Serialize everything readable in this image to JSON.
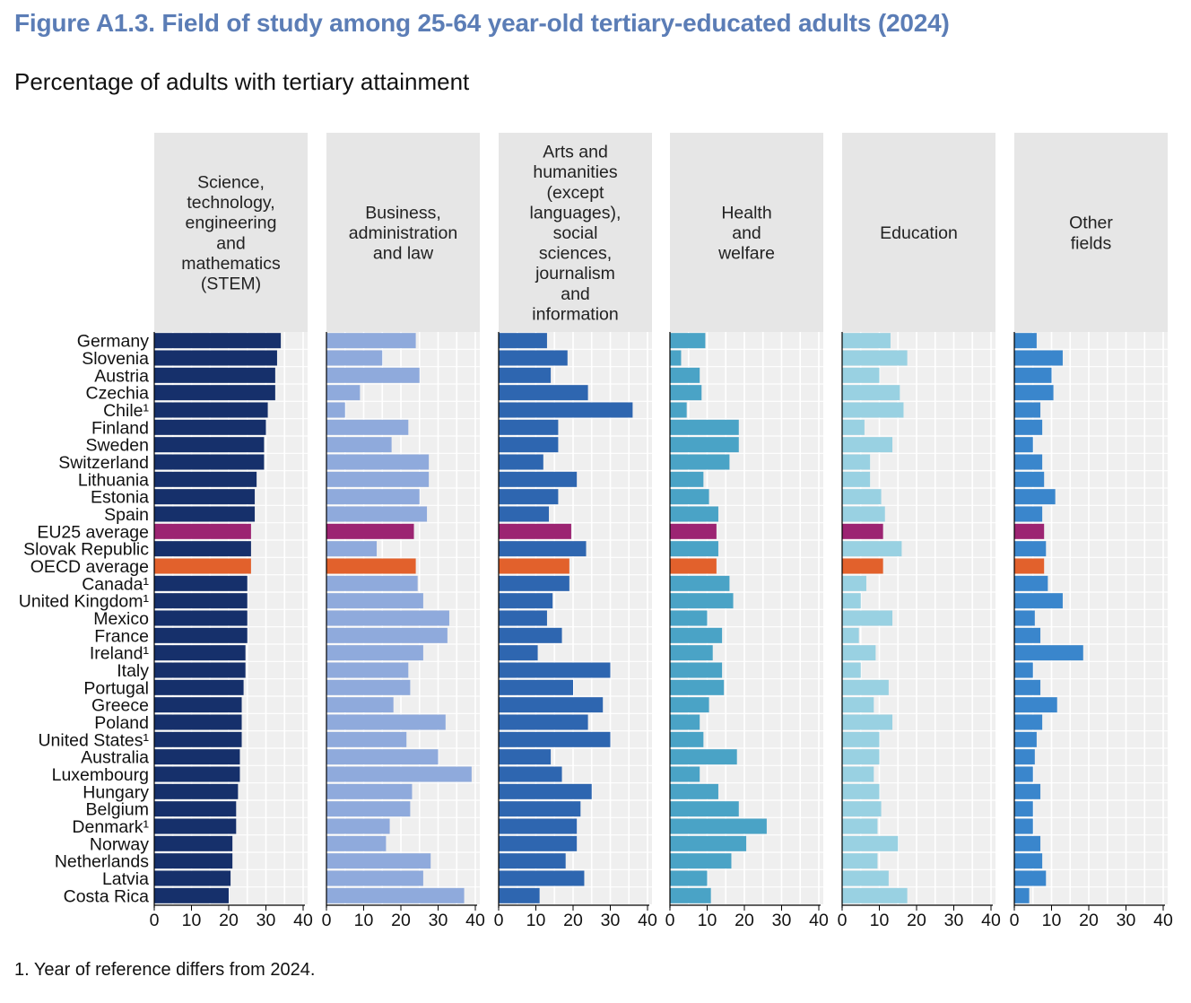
{
  "figure": {
    "title": "Figure A1.3. Field of study among 25-64 year-old tertiary-educated adults (2024)",
    "subtitle": "Percentage of adults with tertiary attainment",
    "note": "1. Year of reference differs from 2024."
  },
  "colors": {
    "panel_header_bg": "#e6e6e6",
    "plot_bg": "#efefef",
    "grid": "#ffffff",
    "eu_highlight": "#9c2472",
    "oecd_highlight": "#e2612c"
  },
  "chart_data": {
    "type": "bar",
    "orientation": "horizontal",
    "categories": [
      "Germany",
      "Slovenia",
      "Austria",
      "Czechia",
      "Chile¹",
      "Finland",
      "Sweden",
      "Switzerland",
      "Lithuania",
      "Estonia",
      "Spain",
      "EU25 average",
      "Slovak Republic",
      "OECD average",
      "Canada¹",
      "United Kingdom¹",
      "Mexico",
      "France",
      "Ireland¹",
      "Italy",
      "Portugal",
      "Greece",
      "Poland",
      "United States¹",
      "Australia",
      "Luxembourg",
      "Hungary",
      "Belgium",
      "Denmark¹",
      "Norway",
      "Netherlands",
      "Latvia",
      "Costa Rica"
    ],
    "highlight": {
      "EU25 average": "#9c2472",
      "OECD average": "#e2612c"
    },
    "xlim": [
      0,
      40
    ],
    "xticks": [
      "0",
      "10",
      "20",
      "30",
      "40"
    ],
    "grid": true,
    "series": [
      {
        "name": "Science, technology, engineering and mathematics (STEM)",
        "color": "#16306b",
        "values": [
          34,
          33,
          32.5,
          32.5,
          30.5,
          30,
          29.5,
          29.5,
          27.5,
          27,
          27,
          26,
          26,
          26,
          25,
          25,
          25,
          25,
          24.5,
          24.5,
          24,
          23.5,
          23.5,
          23.5,
          23,
          23,
          22.5,
          22,
          22,
          21,
          21,
          20.5,
          20
        ]
      },
      {
        "name": "Business, administration and law",
        "color": "#8faadc",
        "values": [
          24,
          15,
          25,
          9,
          5,
          22,
          17.5,
          27.5,
          27.5,
          25,
          27,
          23.5,
          13.5,
          24,
          24.5,
          26,
          33,
          32.5,
          26,
          22,
          22.5,
          18,
          32,
          21.5,
          30,
          39,
          23,
          22.5,
          17,
          16,
          28,
          26,
          37
        ]
      },
      {
        "name": "Arts and humanities (except languages), social sciences, journalism and information",
        "color": "#2e66b0",
        "values": [
          13,
          18.5,
          14,
          24,
          36,
          16,
          16,
          12,
          21,
          16,
          13.5,
          19.5,
          23.5,
          19,
          19,
          14.5,
          13,
          17,
          10.5,
          30,
          20,
          28,
          24,
          30,
          14,
          17,
          25,
          22,
          21,
          21,
          18,
          23,
          11
        ]
      },
      {
        "name": "Health and welfare",
        "color": "#4aa3c6",
        "values": [
          9.5,
          3,
          8,
          8.5,
          4.5,
          18.5,
          18.5,
          16,
          9,
          10.5,
          13,
          12.5,
          13,
          12.5,
          16,
          17,
          10,
          14,
          11.5,
          14,
          14.5,
          10.5,
          8,
          9,
          18,
          8,
          13,
          18.5,
          26,
          20.5,
          16.5,
          10,
          11
        ]
      },
      {
        "name": "Education",
        "color": "#99d1e2",
        "values": [
          13,
          17.5,
          10,
          15.5,
          16.5,
          6,
          13.5,
          7.5,
          7.5,
          10.5,
          11.5,
          11,
          16,
          11,
          6.5,
          5,
          13.5,
          4.5,
          9,
          5,
          12.5,
          8.5,
          13.5,
          10,
          10,
          8.5,
          10,
          10.5,
          9.5,
          15,
          9.5,
          12.5,
          17.5
        ]
      },
      {
        "name": "Other fields",
        "color": "#3a86cc",
        "values": [
          6,
          13,
          10,
          10.5,
          7,
          7.5,
          5,
          7.5,
          8,
          11,
          7.5,
          8,
          8.5,
          8,
          9,
          13,
          5.5,
          7,
          18.5,
          5,
          7,
          11.5,
          7.5,
          6,
          5.5,
          5,
          7,
          5,
          5,
          7,
          7.5,
          8.5,
          4
        ]
      }
    ],
    "panel_titles": [
      [
        "Science,",
        "technology,",
        "engineering",
        "and",
        "mathematics",
        "(STEM)"
      ],
      [
        "Business,",
        "administration",
        "and law"
      ],
      [
        "Arts and",
        "humanities",
        "(except",
        "languages),",
        "social",
        "sciences,",
        "journalism",
        "and",
        "information"
      ],
      [
        "Health",
        "and",
        "welfare"
      ],
      [
        "Education"
      ],
      [
        "Other",
        "fields"
      ]
    ]
  }
}
